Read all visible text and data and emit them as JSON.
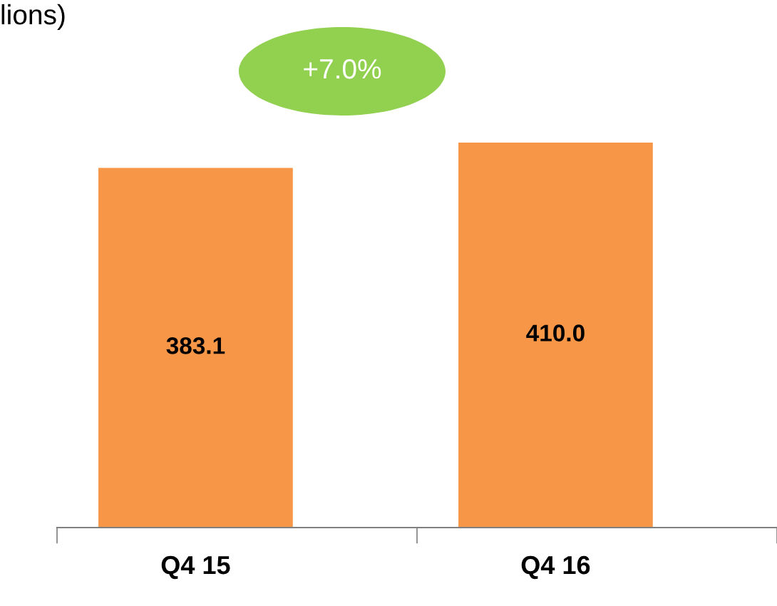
{
  "chart_data": {
    "type": "bar",
    "title": "lions)",
    "categories": [
      "Q4 15",
      "Q4 16"
    ],
    "values": [
      383.1,
      410.0
    ],
    "color": "#f79646",
    "value_labels": [
      "383.1",
      "410.0"
    ],
    "annotations": [
      "+7.0%"
    ],
    "grid": false,
    "legend": false
  }
}
